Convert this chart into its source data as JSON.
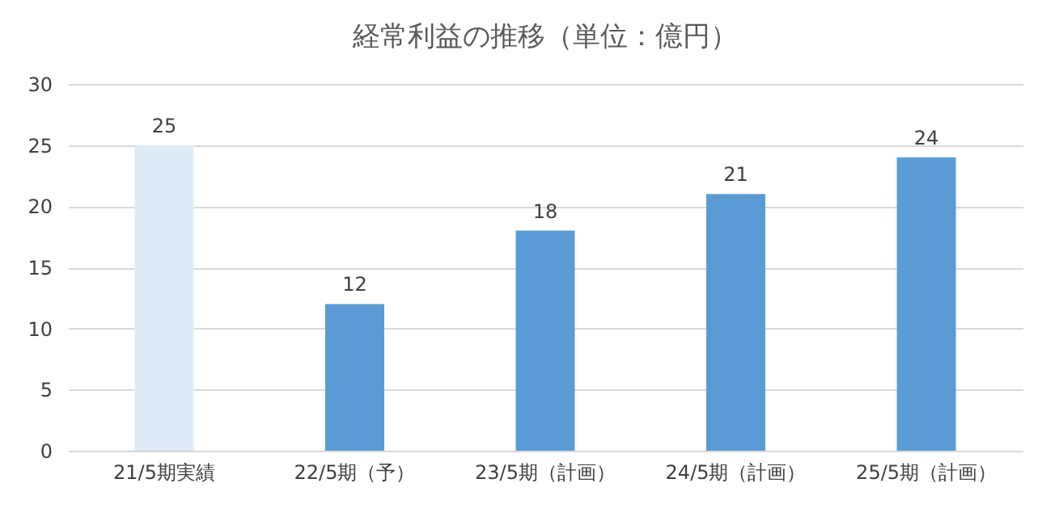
{
  "chart_data": {
    "type": "bar",
    "title": "経常利益の推移（単位：億円）",
    "categories": [
      "21/5期実績",
      "22/5期（予）",
      "23/5期（計画）",
      "24/5期（計画）",
      "25/5期（計画）"
    ],
    "values": [
      25,
      12,
      18,
      21,
      24
    ],
    "colors": [
      "#deebf7",
      "#5b9bd5",
      "#5b9bd5",
      "#5b9bd5",
      "#5b9bd5"
    ],
    "ylim": [
      0,
      30
    ],
    "yticks": [
      0,
      5,
      10,
      15,
      20,
      25,
      30
    ],
    "grid": "y",
    "data_labels": true
  }
}
